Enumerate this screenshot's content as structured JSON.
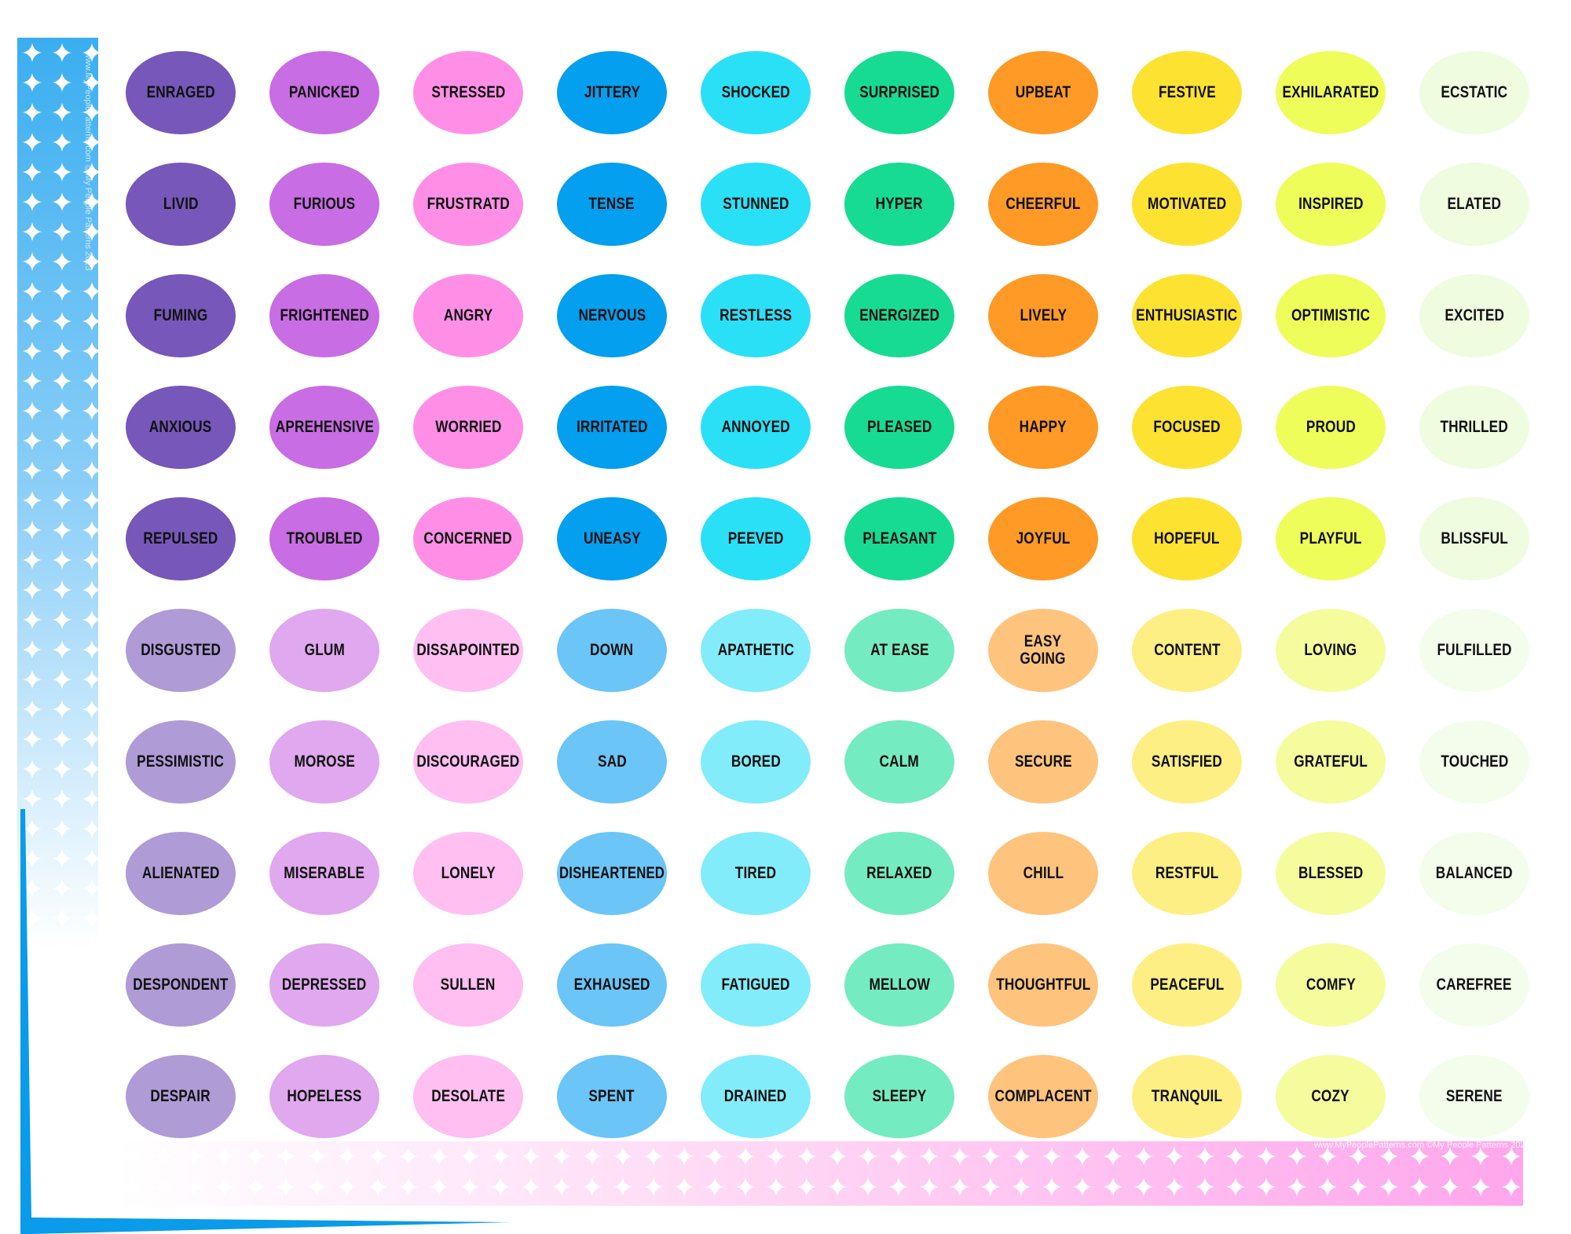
{
  "colors": {
    "bright": [
      "#7757B9",
      "#C86DE3",
      "#FF8FE6",
      "#049FEF",
      "#2AE0F7",
      "#17DB93",
      "#FE9A25",
      "#FEE232",
      "#EEFD5A",
      "#EFFCE0"
    ],
    "light": [
      "#AF9BD6",
      "#E0A8EE",
      "#FFBFF1",
      "#6BC5F7",
      "#82ECFA",
      "#75EBC2",
      "#FEC47E",
      "#FEEF85",
      "#F4FC9E",
      "#F4FDEB"
    ],
    "left_strip": "#3AAEF0",
    "bottom_strip": "#FFA6EC",
    "corner_line": "#0A9BEA"
  },
  "rows": [
    [
      "ENRAGED",
      "PANICKED",
      "STRESSED",
      "JITTERY",
      "SHOCKED",
      "SURPRISED",
      "UPBEAT",
      "FESTIVE",
      "EXHILARATED",
      "ECSTATIC"
    ],
    [
      "LIVID",
      "FURIOUS",
      "FRUSTRATD",
      "TENSE",
      "STUNNED",
      "HYPER",
      "CHEERFUL",
      "MOTIVATED",
      "INSPIRED",
      "ELATED"
    ],
    [
      "FUMING",
      "FRIGHTENED",
      "ANGRY",
      "NERVOUS",
      "RESTLESS",
      "ENERGIZED",
      "LIVELY",
      "ENTHUSIASTIC",
      "OPTIMISTIC",
      "EXCITED"
    ],
    [
      "ANXIOUS",
      "APREHENSIVE",
      "WORRIED",
      "IRRITATED",
      "ANNOYED",
      "PLEASED",
      "HAPPY",
      "FOCUSED",
      "PROUD",
      "THRILLED"
    ],
    [
      "REPULSED",
      "TROUBLED",
      "CONCERNED",
      "UNEASY",
      "PEEVED",
      "PLEASANT",
      "JOYFUL",
      "HOPEFUL",
      "PLAYFUL",
      "BLISSFUL"
    ],
    [
      "DISGUSTED",
      "GLUM",
      "DISSAPOINTED",
      "DOWN",
      "APATHETIC",
      "AT EASE",
      "EASY\nGOING",
      "CONTENT",
      "LOVING",
      "FULFILLED"
    ],
    [
      "PESSIMISTIC",
      "MOROSE",
      "DISCOURAGED",
      "SAD",
      "BORED",
      "CALM",
      "SECURE",
      "SATISFIED",
      "GRATEFUL",
      "TOUCHED"
    ],
    [
      "ALIENATED",
      "MISERABLE",
      "LONELY",
      "DISHEARTENED",
      "TIRED",
      "RELAXED",
      "CHILL",
      "RESTFUL",
      "BLESSED",
      "BALANCED"
    ],
    [
      "DESPONDENT",
      "DEPRESSED",
      "SULLEN",
      "EXHAUSED",
      "FATIGUED",
      "MELLOW",
      "THOUGHTFUL",
      "PEACEFUL",
      "COMFY",
      "CAREFREE"
    ],
    [
      "DESPAIR",
      "HOPELESS",
      "DESOLATE",
      "SPENT",
      "DRAINED",
      "SLEEPY",
      "COMPLACENT",
      "TRANQUIL",
      "COZY",
      "SERENE"
    ]
  ],
  "watermark": "www.MyPeoplePatterns.com  ©My People Patterns 2023",
  "pattern_icon": "four-point-star-icon"
}
